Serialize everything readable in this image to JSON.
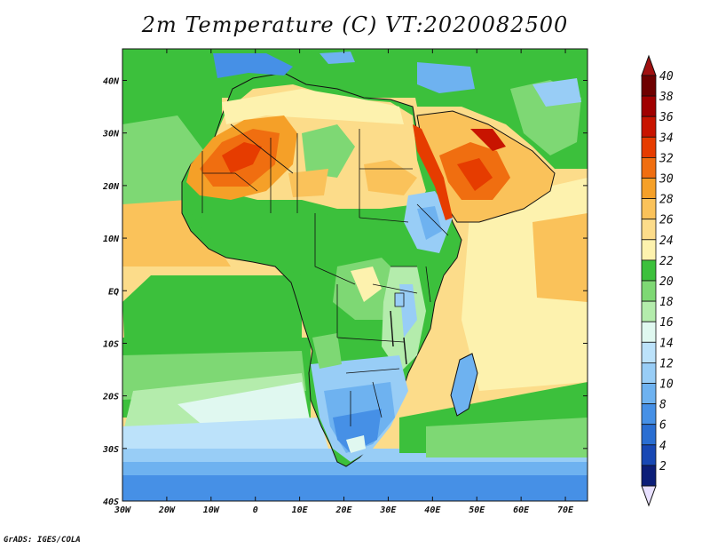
{
  "title": "2m Temperature (C) VT:2020082500",
  "credit": "GrADS: IGES/COLA",
  "map": {
    "lat_labels": [
      "40N",
      "30N",
      "20N",
      "10N",
      "EQ",
      "10S",
      "20S",
      "30S",
      "40S"
    ],
    "lon_labels": [
      "30W",
      "20W",
      "10W",
      "0",
      "10E",
      "20E",
      "30E",
      "40E",
      "50E",
      "60E",
      "70E"
    ],
    "lat_range": [
      -40,
      46
    ],
    "lon_range": [
      -30,
      75
    ]
  },
  "colorbar": {
    "labels": [
      "40",
      "38",
      "36",
      "34",
      "32",
      "30",
      "28",
      "26",
      "24",
      "22",
      "20",
      "18",
      "16",
      "14",
      "12",
      "10",
      "8",
      "6",
      "4",
      "2"
    ],
    "colors": [
      "#6e0000",
      "#a00000",
      "#c81400",
      "#e63c00",
      "#f06e10",
      "#f5a028",
      "#fac25a",
      "#fcdc8a",
      "#fdf2ae",
      "#3cc03c",
      "#7ed874",
      "#b4ecac",
      "#e0f8f0",
      "#bce2fa",
      "#98cdf6",
      "#6eb2f0",
      "#4690e6",
      "#2a6ed2",
      "#1848b4",
      "#0c1e78"
    ],
    "top_color": "#a01010",
    "bottom_color": "#e8e0ff"
  }
}
